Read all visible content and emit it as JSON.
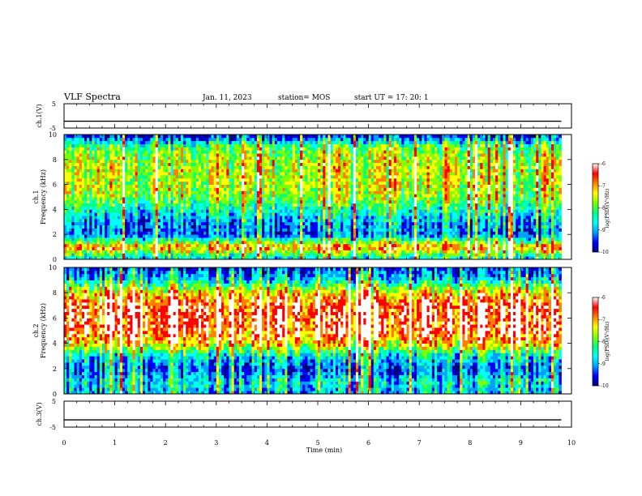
{
  "header": {
    "title": "VLF Spectra",
    "date": "Jan. 11, 2023",
    "station": "station= MOS",
    "start": "start UT =  17: 20: 1"
  },
  "chart_data": [
    {
      "type": "line",
      "name": "ch1-waveform",
      "ylabel": "ch.1(V)",
      "x": [
        0,
        9.8
      ],
      "values": [
        -2.2,
        -2.2
      ],
      "ylim": [
        -5,
        5
      ],
      "xlim": [
        0,
        10
      ],
      "yticks": [
        "5",
        "-5"
      ]
    },
    {
      "type": "heatmap",
      "name": "ch1-spectrogram",
      "ylabel_top": "ch.1",
      "ylabel": "Frequency (kHz)",
      "xlim": [
        0,
        10
      ],
      "data_xlim": [
        0,
        9.8
      ],
      "ylim": [
        0,
        10
      ],
      "yticks": [
        "0",
        "2",
        "4",
        "6",
        "8",
        "10"
      ],
      "colorbar": {
        "label": "log(PSD)(V²/Hz)",
        "range": [
          -10,
          -6
        ],
        "ticks": [
          "-6",
          "-7",
          "-8",
          "-9",
          "-10"
        ]
      },
      "intensity_profile_by_khz": [
        0.3,
        0.75,
        0.2,
        0.25,
        0.4,
        0.55,
        0.6,
        0.6,
        0.58,
        0.5,
        0.1
      ]
    },
    {
      "type": "heatmap",
      "name": "ch2-spectrogram",
      "ylabel_top": "ch.2",
      "ylabel": "Frequency (kHz)",
      "xlim": [
        0,
        10
      ],
      "data_xlim": [
        0,
        9.8
      ],
      "ylim": [
        0,
        10
      ],
      "yticks": [
        "0",
        "2",
        "4",
        "6",
        "8",
        "10"
      ],
      "colorbar": {
        "label": "log(PSD)(V²/Hz)",
        "range": [
          -10,
          -6
        ],
        "ticks": [
          "-6",
          "-7",
          "-8",
          "-9",
          "-10"
        ]
      },
      "intensity_profile_by_khz": [
        0.3,
        0.35,
        0.2,
        0.35,
        0.7,
        0.85,
        0.85,
        0.85,
        0.7,
        0.35,
        0.15
      ]
    },
    {
      "type": "line",
      "name": "ch3-waveform",
      "ylabel": "ch.3(V)",
      "x": [
        0,
        9.8
      ],
      "values": [
        -2.2,
        -2.2
      ],
      "ylim": [
        -5,
        5
      ],
      "xlim": [
        0,
        10
      ],
      "yticks": [
        "5",
        "-5"
      ]
    }
  ],
  "x_axis": {
    "label": "Time (min)",
    "ticks": [
      "0",
      "1",
      "2",
      "3",
      "4",
      "5",
      "6",
      "7",
      "8",
      "9",
      "10"
    ]
  },
  "colors": {
    "colormap": [
      "#000080",
      "#0000ff",
      "#00a0ff",
      "#00ffff",
      "#00ff80",
      "#80ff00",
      "#ffff00",
      "#ff8000",
      "#ff0000",
      "#ffffff"
    ]
  }
}
